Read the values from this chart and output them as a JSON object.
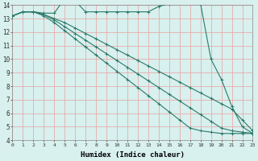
{
  "xlabel": "Humidex (Indice chaleur)",
  "bg_color": "#d8f0ee",
  "grid_color": "#e8a0a0",
  "line_color": "#2a7a6a",
  "xmin": 0,
  "xmax": 23,
  "ymin": 4,
  "ymax": 14,
  "lines": [
    {
      "x": [
        0,
        1,
        2,
        3,
        4,
        5,
        6,
        7,
        8,
        9,
        10,
        11,
        12,
        13,
        14,
        15,
        16,
        17,
        18,
        19,
        20,
        21,
        22,
        23
      ],
      "y": [
        13.2,
        13.5,
        13.5,
        13.4,
        13.4,
        14.5,
        14.3,
        13.5,
        13.5,
        13.5,
        13.5,
        13.5,
        13.5,
        13.5,
        13.9,
        14.1,
        14.2,
        14.3,
        14.1,
        10.0,
        8.5,
        6.5,
        5.0,
        4.5
      ]
    },
    {
      "x": [
        0,
        1,
        2,
        3,
        4,
        5,
        6,
        7,
        8,
        9,
        10,
        11,
        12,
        13,
        14,
        15,
        16,
        17,
        18,
        19,
        20,
        21,
        22,
        23
      ],
      "y": [
        13.2,
        13.5,
        13.5,
        13.3,
        13.0,
        12.7,
        12.3,
        11.9,
        11.5,
        11.1,
        10.7,
        10.3,
        9.9,
        9.5,
        9.1,
        8.7,
        8.3,
        7.9,
        7.5,
        7.1,
        6.7,
        6.3,
        5.5,
        4.7
      ]
    },
    {
      "x": [
        0,
        1,
        2,
        3,
        4,
        5,
        6,
        7,
        8,
        9,
        10,
        11,
        12,
        13,
        14,
        15,
        16,
        17,
        18,
        19,
        20,
        21,
        22,
        23
      ],
      "y": [
        13.2,
        13.5,
        13.5,
        13.3,
        12.9,
        12.4,
        11.9,
        11.4,
        10.9,
        10.4,
        9.9,
        9.4,
        8.9,
        8.4,
        7.9,
        7.4,
        6.9,
        6.4,
        5.9,
        5.4,
        4.9,
        4.7,
        4.6,
        4.5
      ]
    },
    {
      "x": [
        0,
        1,
        2,
        3,
        4,
        5,
        6,
        7,
        8,
        9,
        10,
        11,
        12,
        13,
        14,
        15,
        16,
        17,
        18,
        19,
        20,
        21,
        22,
        23
      ],
      "y": [
        13.2,
        13.5,
        13.5,
        13.2,
        12.7,
        12.1,
        11.5,
        10.9,
        10.3,
        9.7,
        9.1,
        8.5,
        7.9,
        7.3,
        6.7,
        6.1,
        5.5,
        4.9,
        4.7,
        4.6,
        4.5,
        4.5,
        4.5,
        4.5
      ]
    }
  ]
}
